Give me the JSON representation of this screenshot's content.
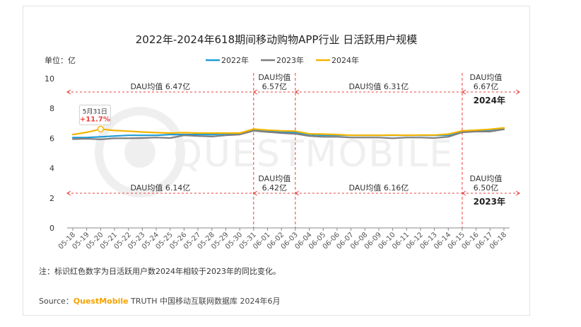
{
  "chart_data": {
    "type": "line",
    "title": "2022年-2024年618期间移动购物APP行业 日活跃用户规模",
    "unit_label": "单位：亿",
    "ylim": [
      0,
      10
    ],
    "yticks": [
      "0",
      "2",
      "4",
      "6",
      "8",
      "10"
    ],
    "grid": false,
    "legend_position": "top",
    "categories": [
      "05-18",
      "05-19",
      "05-20",
      "05-21",
      "05-22",
      "05-23",
      "05-24",
      "05-25",
      "05-26",
      "05-27",
      "05-28",
      "05-29",
      "05-30",
      "05-31",
      "06-01",
      "06-02",
      "06-03",
      "06-04",
      "06-05",
      "06-06",
      "06-07",
      "06-08",
      "06-09",
      "06-10",
      "06-11",
      "06-12",
      "06-13",
      "06-14",
      "06-15",
      "06-16",
      "06-17",
      "06-18"
    ],
    "series": [
      {
        "name": "2022年",
        "color": "#1f9bd7",
        "values": [
          6.05,
          6.05,
          6.1,
          6.15,
          6.2,
          6.2,
          6.2,
          6.25,
          6.25,
          6.25,
          6.25,
          6.3,
          6.3,
          6.55,
          6.5,
          6.4,
          6.4,
          6.25,
          6.2,
          6.2,
          6.2,
          6.2,
          6.2,
          6.2,
          6.2,
          6.2,
          6.2,
          6.2,
          6.45,
          6.5,
          6.55,
          6.6
        ]
      },
      {
        "name": "2023年",
        "color": "#7f7f7f",
        "values": [
          5.95,
          5.97,
          5.93,
          6.0,
          6.0,
          6.02,
          6.05,
          6.02,
          6.2,
          6.15,
          6.12,
          6.2,
          6.25,
          6.5,
          6.42,
          6.35,
          6.3,
          6.15,
          6.1,
          6.1,
          6.05,
          6.05,
          6.05,
          6.0,
          6.05,
          6.05,
          6.02,
          6.1,
          6.4,
          6.45,
          6.45,
          6.6
        ]
      },
      {
        "name": "2024年",
        "color": "#f5b400",
        "values": [
          6.25,
          6.4,
          6.62,
          6.52,
          6.48,
          6.42,
          6.38,
          6.35,
          6.38,
          6.35,
          6.35,
          6.35,
          6.35,
          6.62,
          6.55,
          6.5,
          6.48,
          6.3,
          6.28,
          6.25,
          6.2,
          6.2,
          6.2,
          6.22,
          6.2,
          6.22,
          6.22,
          6.28,
          6.5,
          6.55,
          6.6,
          6.7
        ]
      }
    ],
    "callout": {
      "date": "5月31日",
      "change": "+11.7%",
      "category": "05-20"
    },
    "watermark": "QUESTMOBILE",
    "periods_top": [
      {
        "label": "DAU均值  6.47亿"
      },
      {
        "label_line1": "DAU均值",
        "label_line2": "6.57亿"
      },
      {
        "label": "DAU均值  6.31亿"
      },
      {
        "label_line1": "DAU均值",
        "label_line2": "6.67亿"
      }
    ],
    "periods_bottom": [
      {
        "label": "DAU均值  6.14亿"
      },
      {
        "label_line1": "DAU均值",
        "label_line2": "6.42亿"
      },
      {
        "label": "DAU均值  6.16亿"
      },
      {
        "label_line1": "DAU均值",
        "label_line2": "6.50亿"
      }
    ],
    "year_tag_top": "2024年",
    "year_tag_bottom": "2023年"
  },
  "footnote": "注：标识红色数字为日活跃用户数2024年相较于2023年的同比变化。",
  "source": {
    "prefix": "Source：",
    "brand": "QuestMobile",
    "rest": " TRUTH 中国移动互联网数据库 2024年6月"
  },
  "colors": {
    "red": "#e8413c",
    "brand": "#f5a300",
    "axis": "#555555"
  }
}
